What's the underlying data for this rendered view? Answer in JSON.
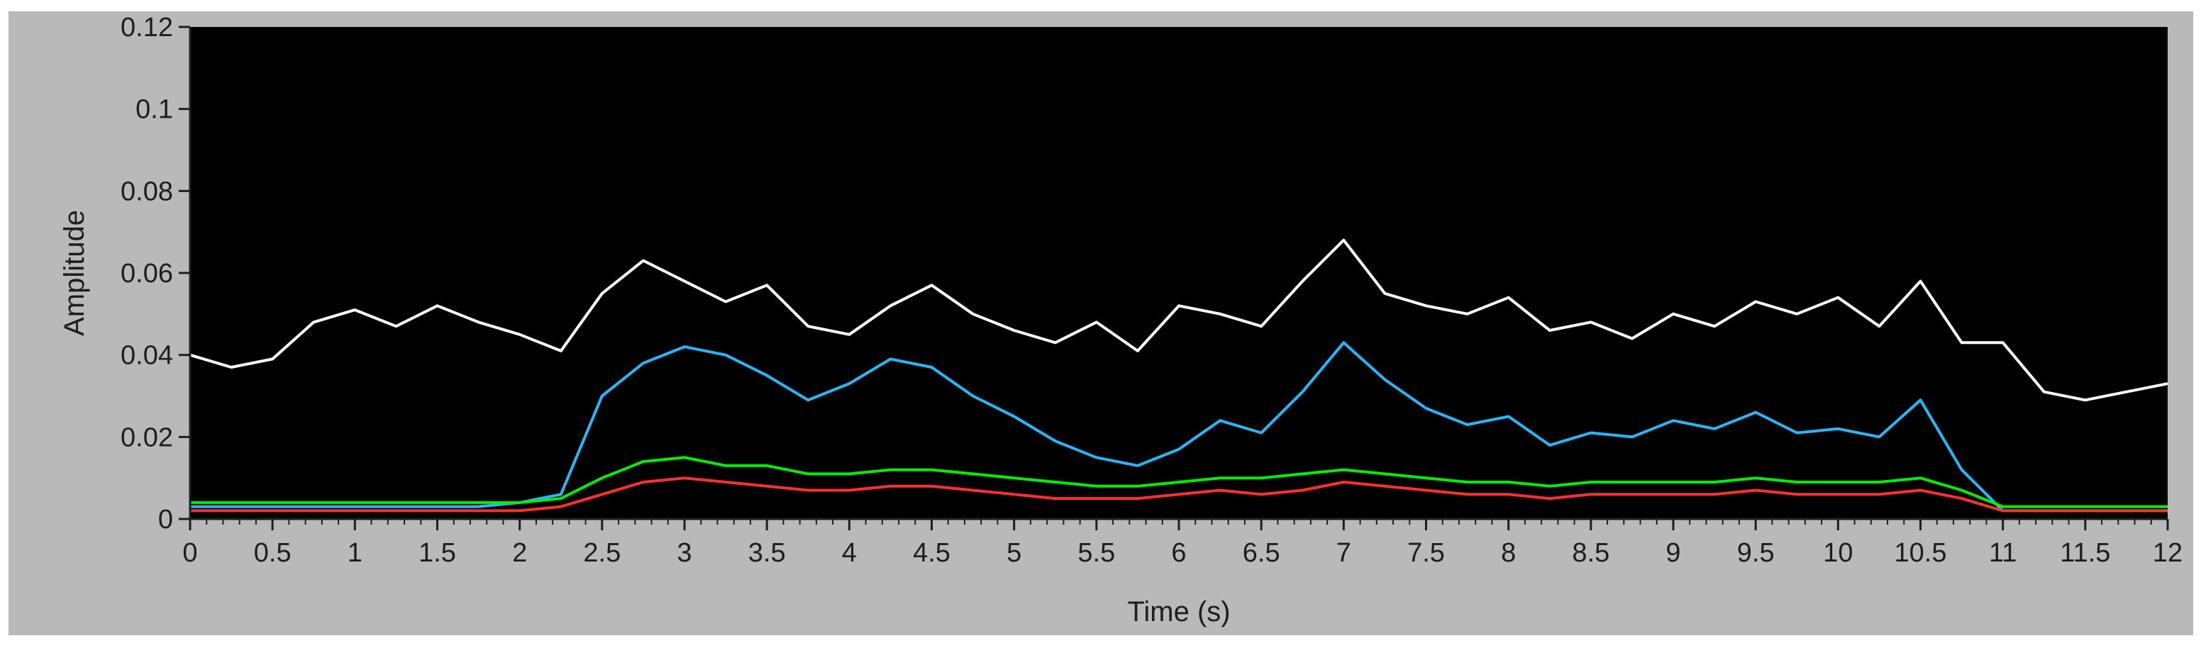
{
  "chart_data": {
    "type": "line",
    "title": "",
    "xlabel": "Time (s)",
    "ylabel": "Amplitude",
    "xlim": [
      0,
      12
    ],
    "ylim": [
      0,
      0.12
    ],
    "xticks": [
      0,
      0.5,
      1,
      1.5,
      2,
      2.5,
      3,
      3.5,
      4,
      4.5,
      5,
      5.5,
      6,
      6.5,
      7,
      7.5,
      8,
      8.5,
      9,
      9.5,
      10,
      10.5,
      11,
      11.5,
      12
    ],
    "xtick_labels": [
      "0",
      "0.5",
      "1",
      "1.5",
      "2",
      "2.5",
      "3",
      "3.5",
      "4",
      "4.5",
      "5",
      "5.5",
      "6",
      "6.5",
      "7",
      "7.5",
      "8",
      "8.5",
      "9",
      "9.5",
      "10",
      "10.5",
      "11",
      "11.5",
      "12"
    ],
    "yticks": [
      0,
      0.02,
      0.04,
      0.06,
      0.08,
      0.1,
      0.12
    ],
    "ytick_labels": [
      "0",
      "0.02",
      "0.04",
      "0.06",
      "0.08",
      "0.1",
      "0.12"
    ],
    "grid": false,
    "legend": "none",
    "x": [
      0,
      0.25,
      0.5,
      0.75,
      1,
      1.25,
      1.5,
      1.75,
      2,
      2.25,
      2.5,
      2.75,
      3,
      3.25,
      3.5,
      3.75,
      4,
      4.25,
      4.5,
      4.75,
      5,
      5.25,
      5.5,
      5.75,
      6,
      6.25,
      6.5,
      6.75,
      7,
      7.25,
      7.5,
      7.75,
      8,
      8.25,
      8.5,
      8.75,
      9,
      9.25,
      9.5,
      9.75,
      10,
      10.25,
      10.5,
      10.75,
      11,
      11.25,
      11.5,
      11.75,
      12
    ],
    "series": [
      {
        "color": "#ffffff",
        "values": [
          0.04,
          0.037,
          0.039,
          0.048,
          0.051,
          0.047,
          0.052,
          0.048,
          0.045,
          0.041,
          0.055,
          0.063,
          0.058,
          0.053,
          0.057,
          0.047,
          0.045,
          0.052,
          0.057,
          0.05,
          0.046,
          0.043,
          0.048,
          0.041,
          0.052,
          0.05,
          0.047,
          0.058,
          0.068,
          0.055,
          0.052,
          0.05,
          0.054,
          0.046,
          0.048,
          0.044,
          0.05,
          0.047,
          0.053,
          0.05,
          0.054,
          0.047,
          0.058,
          0.043,
          0.043,
          0.031,
          0.029,
          0.031,
          0.033
        ]
      },
      {
        "color": "#29b6f6",
        "values": [
          0.003,
          0.003,
          0.003,
          0.003,
          0.003,
          0.003,
          0.003,
          0.003,
          0.004,
          0.006,
          0.03,
          0.038,
          0.042,
          0.04,
          0.035,
          0.029,
          0.033,
          0.039,
          0.037,
          0.03,
          0.025,
          0.019,
          0.015,
          0.013,
          0.017,
          0.024,
          0.021,
          0.031,
          0.043,
          0.034,
          0.027,
          0.023,
          0.025,
          0.018,
          0.021,
          0.02,
          0.024,
          0.022,
          0.026,
          0.021,
          0.022,
          0.02,
          0.029,
          0.012,
          0.002,
          0.002,
          0.002,
          0.002,
          0.002
        ]
      },
      {
        "color": "#00ee00",
        "values": [
          0.004,
          0.004,
          0.004,
          0.004,
          0.004,
          0.004,
          0.004,
          0.004,
          0.004,
          0.005,
          0.01,
          0.014,
          0.015,
          0.013,
          0.013,
          0.011,
          0.011,
          0.012,
          0.012,
          0.011,
          0.01,
          0.009,
          0.008,
          0.008,
          0.009,
          0.01,
          0.01,
          0.011,
          0.012,
          0.011,
          0.01,
          0.009,
          0.009,
          0.008,
          0.009,
          0.009,
          0.009,
          0.009,
          0.01,
          0.009,
          0.009,
          0.009,
          0.01,
          0.007,
          0.003,
          0.003,
          0.003,
          0.003,
          0.003
        ]
      },
      {
        "color": "#ff3030",
        "values": [
          0.002,
          0.002,
          0.002,
          0.002,
          0.002,
          0.002,
          0.002,
          0.002,
          0.002,
          0.003,
          0.006,
          0.009,
          0.01,
          0.009,
          0.008,
          0.007,
          0.007,
          0.008,
          0.008,
          0.007,
          0.006,
          0.005,
          0.005,
          0.005,
          0.006,
          0.007,
          0.006,
          0.007,
          0.009,
          0.008,
          0.007,
          0.006,
          0.006,
          0.005,
          0.006,
          0.006,
          0.006,
          0.006,
          0.007,
          0.006,
          0.006,
          0.006,
          0.007,
          0.005,
          0.002,
          0.002,
          0.002,
          0.002,
          0.002
        ]
      }
    ]
  },
  "colors": {
    "frame": "#b9b9b9",
    "plot_bg": "#000000",
    "axis": "#1e1e1e",
    "text": "#1e1e1e"
  }
}
